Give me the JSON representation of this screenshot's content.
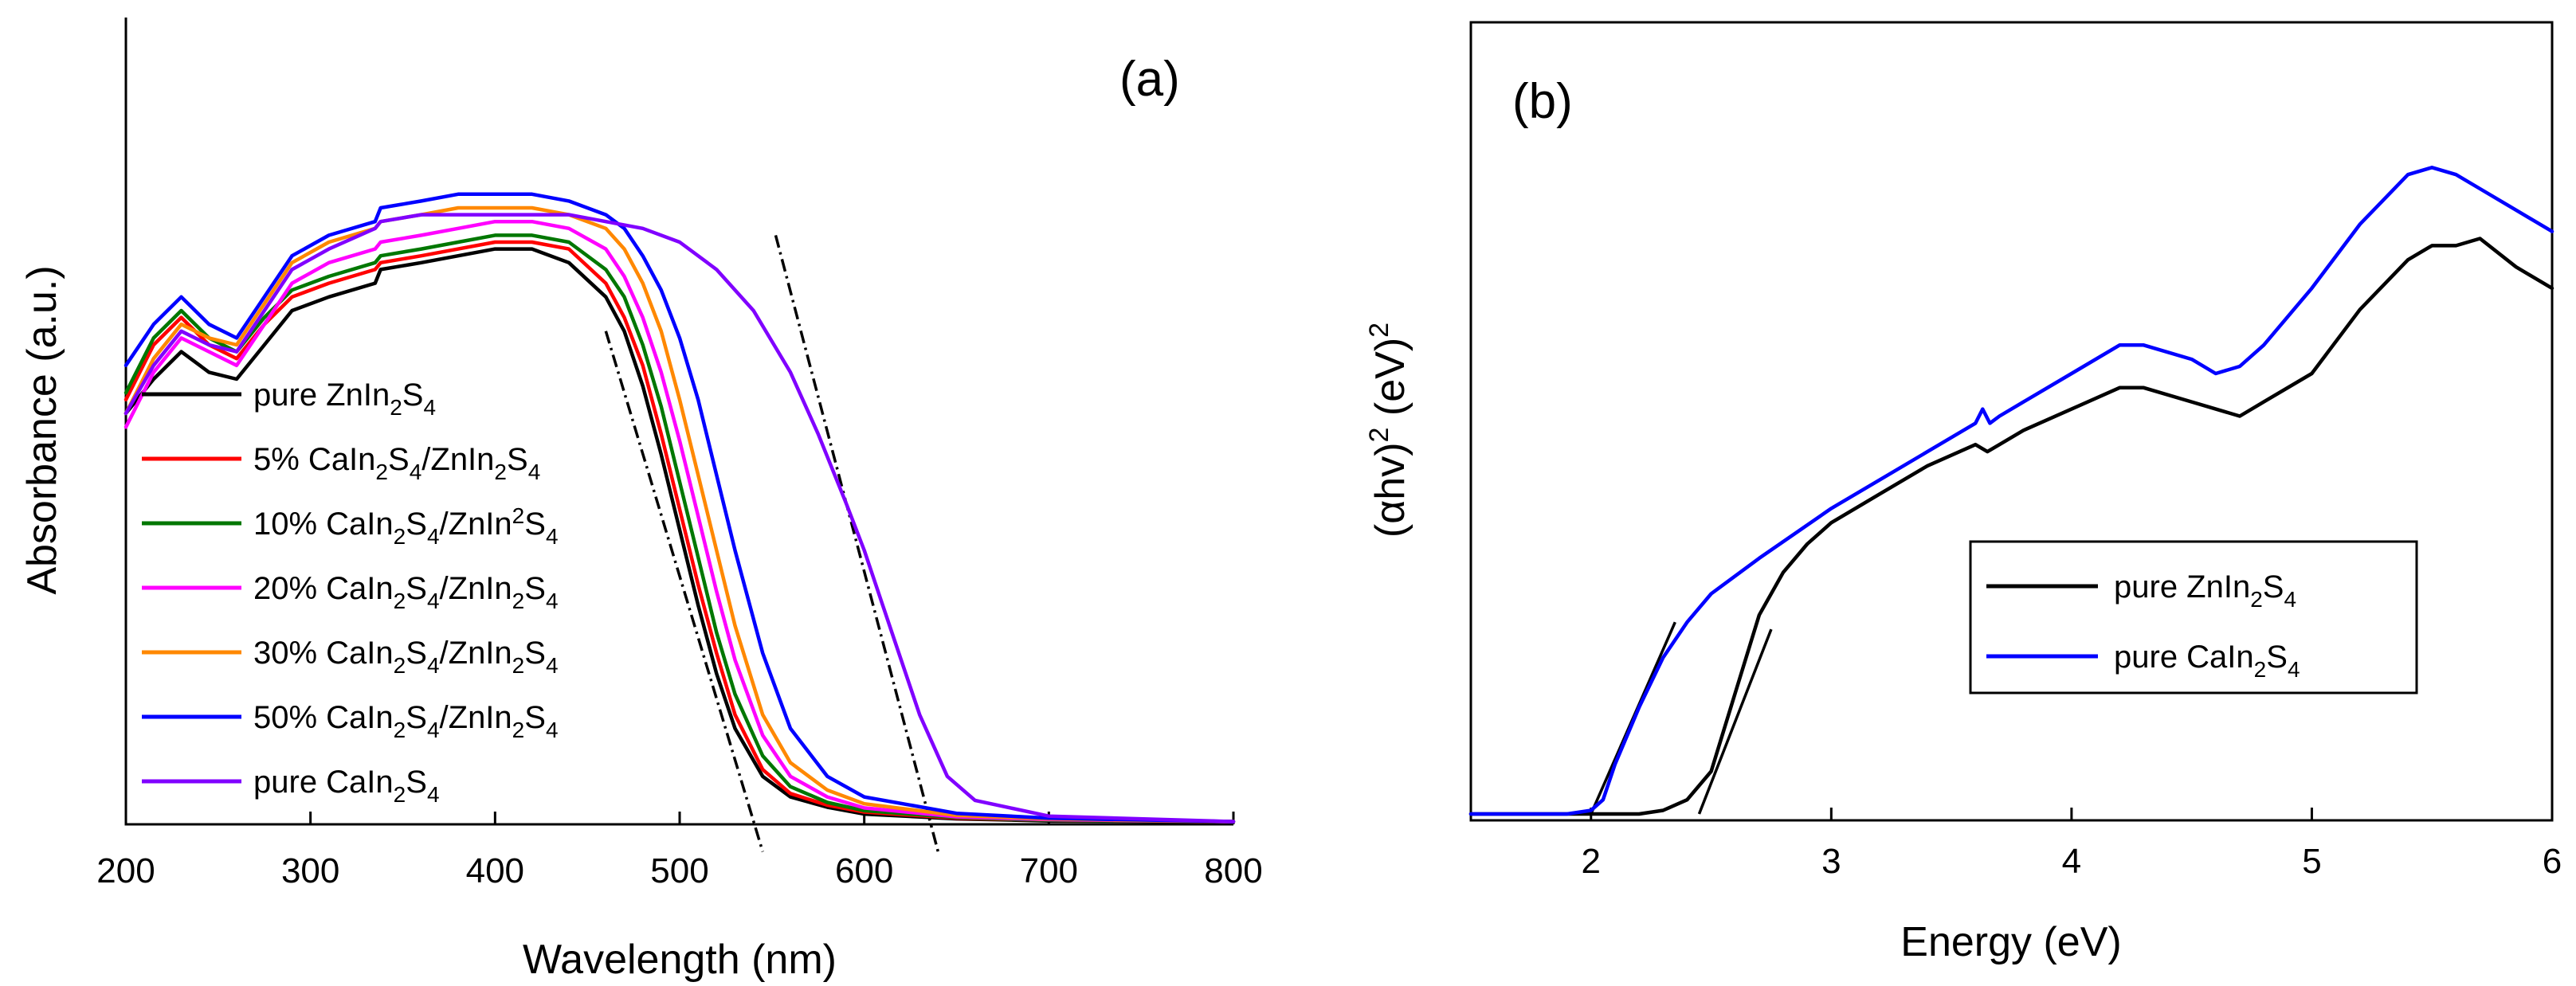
{
  "chart_data": [
    {
      "panel": "(a)",
      "type": "line",
      "xlabel": "Wavelength (nm)",
      "ylabel": "Absorbance (a.u.)",
      "xlim": [
        200,
        800
      ],
      "ylim": [
        0,
        1.0
      ],
      "xticks": [
        200,
        300,
        400,
        500,
        600,
        700,
        800
      ],
      "xtick_labels": [
        "200",
        "300",
        "400",
        "500",
        "600",
        "700",
        "800"
      ],
      "legend_position": "left",
      "series": [
        {
          "name": "pure ZnIn2S4",
          "label_main": "pure ZnIn",
          "formula": [
            [
              "2",
              "S"
            ],
            [
              "4",
              ""
            ]
          ],
          "color": "#000000",
          "x": [
            200,
            215,
            230,
            245,
            260,
            275,
            290,
            310,
            335,
            338,
            360,
            380,
            400,
            420,
            440,
            460,
            470,
            480,
            490,
            500,
            510,
            520,
            530,
            545,
            560,
            580,
            600,
            650,
            700,
            800
          ],
          "y": [
            0.6,
            0.65,
            0.69,
            0.66,
            0.65,
            0.7,
            0.75,
            0.77,
            0.79,
            0.81,
            0.82,
            0.83,
            0.84,
            0.84,
            0.82,
            0.77,
            0.72,
            0.64,
            0.54,
            0.43,
            0.32,
            0.22,
            0.14,
            0.07,
            0.04,
            0.025,
            0.015,
            0.008,
            0.005,
            0.004
          ]
        },
        {
          "name": "5% CaIn2S4/ZnIn2S4",
          "label_main": "5% CaIn",
          "formula": [
            [
              "2",
              "S"
            ],
            [
              "4",
              "/ZnIn"
            ],
            [
              "2",
              "S"
            ],
            [
              "4",
              ""
            ]
          ],
          "color": "#ff0000",
          "x": [
            200,
            215,
            230,
            245,
            260,
            275,
            290,
            310,
            335,
            338,
            360,
            380,
            400,
            420,
            440,
            460,
            470,
            480,
            490,
            500,
            510,
            520,
            530,
            545,
            560,
            580,
            600,
            650,
            700,
            800
          ],
          "y": [
            0.62,
            0.7,
            0.74,
            0.7,
            0.68,
            0.73,
            0.77,
            0.79,
            0.81,
            0.82,
            0.83,
            0.84,
            0.85,
            0.85,
            0.84,
            0.79,
            0.74,
            0.67,
            0.57,
            0.46,
            0.35,
            0.25,
            0.16,
            0.08,
            0.045,
            0.028,
            0.018,
            0.009,
            0.006,
            0.004
          ]
        },
        {
          "name": "10% CaIn2S4/ZnIn^2S4",
          "label_main": "10% CaIn",
          "formula": [
            [
              "2",
              "S"
            ],
            [
              "4",
              "/ZnIn"
            ],
            [
              "^2",
              "S"
            ],
            [
              "4",
              ""
            ]
          ],
          "color": "#007700",
          "x": [
            200,
            215,
            230,
            245,
            260,
            275,
            290,
            310,
            335,
            338,
            360,
            380,
            400,
            420,
            440,
            460,
            470,
            480,
            490,
            500,
            510,
            520,
            530,
            545,
            560,
            580,
            600,
            650,
            700,
            800
          ],
          "y": [
            0.63,
            0.71,
            0.75,
            0.71,
            0.69,
            0.74,
            0.78,
            0.8,
            0.82,
            0.83,
            0.84,
            0.85,
            0.86,
            0.86,
            0.85,
            0.81,
            0.77,
            0.7,
            0.61,
            0.5,
            0.39,
            0.28,
            0.19,
            0.1,
            0.055,
            0.032,
            0.02,
            0.01,
            0.006,
            0.004
          ]
        },
        {
          "name": "20% CaIn2S4/ZnIn2S4",
          "label_main": "20% CaIn",
          "formula": [
            [
              "2",
              "S"
            ],
            [
              "4",
              "/ZnIn"
            ],
            [
              "2",
              "S"
            ],
            [
              "4",
              ""
            ]
          ],
          "color": "#ff00ff",
          "x": [
            200,
            215,
            230,
            245,
            260,
            275,
            290,
            310,
            335,
            338,
            360,
            380,
            400,
            420,
            440,
            460,
            470,
            480,
            490,
            500,
            510,
            520,
            530,
            545,
            560,
            580,
            600,
            650,
            700,
            800
          ],
          "y": [
            0.58,
            0.66,
            0.71,
            0.69,
            0.67,
            0.73,
            0.79,
            0.82,
            0.84,
            0.85,
            0.86,
            0.87,
            0.88,
            0.88,
            0.87,
            0.84,
            0.8,
            0.74,
            0.66,
            0.56,
            0.45,
            0.34,
            0.24,
            0.13,
            0.07,
            0.04,
            0.024,
            0.011,
            0.007,
            0.004
          ]
        },
        {
          "name": "30% CaIn2S4/ZnIn2S4",
          "label_main": "30% CaIn",
          "formula": [
            [
              "2",
              "S"
            ],
            [
              "4",
              "/ZnIn"
            ],
            [
              "2",
              "S"
            ],
            [
              "4",
              ""
            ]
          ],
          "color": "#ff8800",
          "x": [
            200,
            215,
            230,
            245,
            260,
            275,
            290,
            310,
            335,
            338,
            360,
            380,
            400,
            420,
            440,
            460,
            470,
            480,
            490,
            500,
            510,
            520,
            530,
            545,
            560,
            580,
            600,
            650,
            700,
            800
          ],
          "y": [
            0.6,
            0.68,
            0.73,
            0.71,
            0.7,
            0.76,
            0.82,
            0.85,
            0.87,
            0.88,
            0.89,
            0.9,
            0.9,
            0.9,
            0.89,
            0.87,
            0.84,
            0.79,
            0.72,
            0.62,
            0.51,
            0.4,
            0.29,
            0.16,
            0.09,
            0.05,
            0.03,
            0.013,
            0.008,
            0.004
          ]
        },
        {
          "name": "50% CaIn2S4/ZnIn2S4",
          "label_main": "50% CaIn",
          "formula": [
            [
              "2",
              "S"
            ],
            [
              "4",
              "/ZnIn"
            ],
            [
              "2",
              "S"
            ],
            [
              "4",
              ""
            ]
          ],
          "color": "#0000ff",
          "x": [
            200,
            215,
            230,
            245,
            260,
            275,
            290,
            310,
            335,
            338,
            360,
            380,
            400,
            420,
            440,
            460,
            470,
            480,
            490,
            500,
            510,
            520,
            530,
            545,
            560,
            580,
            600,
            650,
            700,
            800
          ],
          "y": [
            0.67,
            0.73,
            0.77,
            0.73,
            0.71,
            0.77,
            0.83,
            0.86,
            0.88,
            0.9,
            0.91,
            0.92,
            0.92,
            0.92,
            0.91,
            0.89,
            0.87,
            0.83,
            0.78,
            0.71,
            0.62,
            0.51,
            0.4,
            0.25,
            0.14,
            0.07,
            0.04,
            0.016,
            0.009,
            0.004
          ]
        },
        {
          "name": "pure CaIn2S4",
          "label_main": "pure CaIn",
          "formula": [
            [
              "2",
              "S"
            ],
            [
              "4",
              ""
            ]
          ],
          "color": "#8000ff",
          "x": [
            200,
            215,
            230,
            245,
            260,
            275,
            290,
            310,
            335,
            338,
            360,
            380,
            400,
            420,
            440,
            460,
            480,
            500,
            520,
            540,
            560,
            575,
            590,
            600,
            610,
            620,
            630,
            645,
            660,
            700,
            800
          ],
          "y": [
            0.6,
            0.67,
            0.72,
            0.7,
            0.69,
            0.75,
            0.81,
            0.84,
            0.87,
            0.88,
            0.89,
            0.89,
            0.89,
            0.89,
            0.89,
            0.88,
            0.87,
            0.85,
            0.81,
            0.75,
            0.66,
            0.57,
            0.47,
            0.4,
            0.32,
            0.24,
            0.16,
            0.07,
            0.035,
            0.012,
            0.004
          ]
        }
      ],
      "fit_lines": [
        {
          "x": [
            460,
            545
          ],
          "y": [
            0.72,
            -0.04
          ]
        },
        {
          "x": [
            552,
            640
          ],
          "y": [
            0.86,
            -0.04
          ]
        }
      ]
    },
    {
      "panel": "(b)",
      "type": "line",
      "xlabel": "Energy (eV)",
      "ylabel": "(αhv)",
      "ylabel_suffix": "(eV)",
      "ylabel_exp": "2",
      "xlim": [
        1.5,
        6
      ],
      "ylim": [
        0,
        1.0
      ],
      "xticks": [
        2,
        3,
        4,
        5,
        6
      ],
      "xtick_labels": [
        "2",
        "3",
        "4",
        "5",
        "6"
      ],
      "legend_position": "center-right",
      "series": [
        {
          "name": "pure ZnIn2S4",
          "label_main": "pure ZnIn",
          "formula": [
            [
              "2",
              "S"
            ],
            [
              "4",
              ""
            ]
          ],
          "color": "#000000",
          "x": [
            1.5,
            2.2,
            2.3,
            2.4,
            2.5,
            2.6,
            2.7,
            2.8,
            2.9,
            3.0,
            3.2,
            3.4,
            3.6,
            3.65,
            3.7,
            3.8,
            4.0,
            4.2,
            4.3,
            4.5,
            4.7,
            4.8,
            5.0,
            5.2,
            5.4,
            5.5,
            5.6,
            5.7,
            5.85,
            6.0
          ],
          "y": [
            0,
            0,
            0.005,
            0.02,
            0.06,
            0.17,
            0.28,
            0.34,
            0.38,
            0.41,
            0.45,
            0.49,
            0.52,
            0.51,
            0.52,
            0.54,
            0.57,
            0.6,
            0.6,
            0.58,
            0.56,
            0.58,
            0.62,
            0.71,
            0.78,
            0.8,
            0.8,
            0.81,
            0.77,
            0.74
          ]
        },
        {
          "name": "pure CaIn2S4",
          "label_main": "pure CaIn",
          "formula": [
            [
              "2",
              "S"
            ],
            [
              "4",
              ""
            ]
          ],
          "color": "#0000ff",
          "x": [
            1.5,
            1.9,
            2.0,
            2.05,
            2.1,
            2.2,
            2.3,
            2.4,
            2.5,
            2.7,
            3.0,
            3.2,
            3.4,
            3.6,
            3.63,
            3.66,
            3.7,
            3.8,
            4.0,
            4.2,
            4.3,
            4.5,
            4.6,
            4.7,
            4.8,
            5.0,
            5.2,
            5.4,
            5.5,
            5.6,
            5.7,
            5.85,
            6.0
          ],
          "y": [
            0,
            0,
            0.005,
            0.02,
            0.07,
            0.15,
            0.22,
            0.27,
            0.31,
            0.36,
            0.43,
            0.47,
            0.51,
            0.55,
            0.57,
            0.55,
            0.56,
            0.58,
            0.62,
            0.66,
            0.66,
            0.64,
            0.62,
            0.63,
            0.66,
            0.74,
            0.83,
            0.9,
            0.91,
            0.9,
            0.88,
            0.85,
            0.82
          ]
        }
      ],
      "fit_lines": [
        {
          "x": [
            2.0,
            2.35
          ],
          "y": [
            0.0,
            0.27
          ]
        },
        {
          "x": [
            2.45,
            2.75
          ],
          "y": [
            0.0,
            0.26
          ]
        }
      ]
    }
  ]
}
